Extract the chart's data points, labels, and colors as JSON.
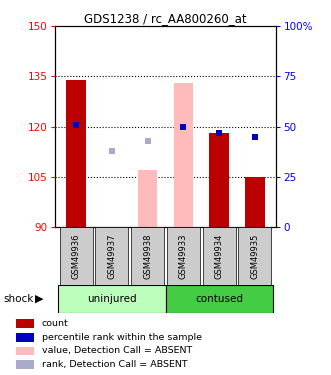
{
  "title": "GDS1238 / rc_AA800260_at",
  "samples": [
    "GSM49936",
    "GSM49937",
    "GSM49938",
    "GSM49933",
    "GSM49934",
    "GSM49935"
  ],
  "ylim_left": [
    90,
    150
  ],
  "ylim_right": [
    0,
    100
  ],
  "yticks_left": [
    90,
    105,
    120,
    135,
    150
  ],
  "yticks_right": [
    0,
    25,
    50,
    75,
    100
  ],
  "bar_color_red": "#bb0000",
  "bar_color_pink": "#ffbbbb",
  "dot_color_blue": "#0000bb",
  "dot_color_lightblue": "#aaaacc",
  "red_bars": [
    134,
    null,
    null,
    null,
    118,
    105
  ],
  "pink_bars": [
    null,
    null,
    107,
    133,
    null,
    null
  ],
  "blue_dots_rank": [
    51,
    null,
    null,
    50,
    47,
    45
  ],
  "lightblue_dots_rank": [
    null,
    38,
    43,
    null,
    null,
    null
  ],
  "group_uninjured_color": "#bbffbb",
  "group_contused_color": "#44cc44",
  "shock_label": "shock",
  "legend_items": [
    {
      "color": "#bb0000",
      "label": "count"
    },
    {
      "color": "#0000bb",
      "label": "percentile rank within the sample"
    },
    {
      "color": "#ffbbbb",
      "label": "value, Detection Call = ABSENT"
    },
    {
      "color": "#aaaacc",
      "label": "rank, Detection Call = ABSENT"
    }
  ]
}
